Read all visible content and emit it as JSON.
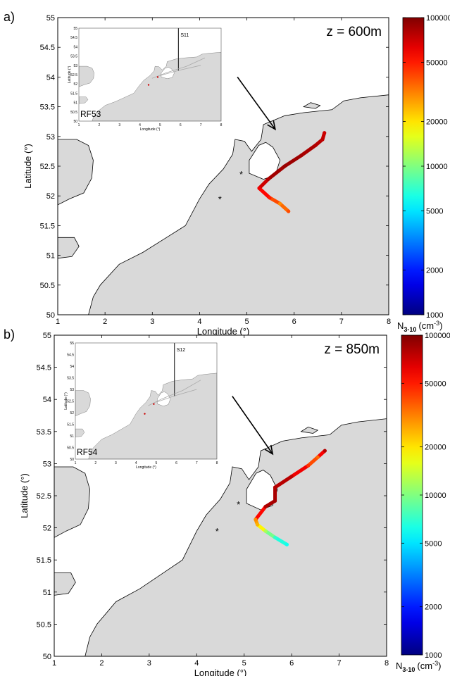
{
  "colors": {
    "land": "#d9d9d9",
    "sea": "#ffffff",
    "coast": "#000000",
    "marker": "#cc0000"
  },
  "colorbar": {
    "label": "N",
    "label_sub": "3-10",
    "label_unit": "(cm",
    "label_exp": "-3",
    "label_close": ")",
    "ticks": [
      "100000",
      "50000",
      "20000",
      "10000",
      "5000",
      "2000",
      "1000"
    ],
    "tick_values": [
      100000,
      50000,
      20000,
      10000,
      5000,
      2000,
      1000
    ],
    "min": 1000,
    "max": 100000,
    "scale": "log"
  },
  "chart_data": [
    {
      "type": "scatter",
      "panel_label": "a)",
      "annotation": "z = 600m",
      "xlabel": "Longitude (°)",
      "ylabel": "Latitude (°)",
      "xlim": [
        1,
        8
      ],
      "ylim": [
        50,
        55
      ],
      "xticks": [
        "1",
        "2",
        "3",
        "4",
        "5",
        "6",
        "7",
        "8"
      ],
      "yticks": [
        "50",
        "50.5",
        "51",
        "51.5",
        "52",
        "52.5",
        "53",
        "53.5",
        "54",
        "54.5",
        "55"
      ],
      "markers": [
        {
          "lon": 4.43,
          "lat": 51.95
        },
        {
          "lon": 4.88,
          "lat": 52.37
        }
      ],
      "arrow": {
        "from": [
          4.8,
          54.0
        ],
        "to": [
          5.6,
          53.12
        ]
      },
      "track": [
        {
          "lon": 5.88,
          "lat": 51.74,
          "n": 40000
        },
        {
          "lon": 5.7,
          "lat": 51.87,
          "n": 30000
        },
        {
          "lon": 5.48,
          "lat": 51.97,
          "n": 50000
        },
        {
          "lon": 5.26,
          "lat": 52.13,
          "n": 60000
        },
        {
          "lon": 5.45,
          "lat": 52.28,
          "n": 80000
        },
        {
          "lon": 5.8,
          "lat": 52.5,
          "n": 90000
        },
        {
          "lon": 6.15,
          "lat": 52.68,
          "n": 85000
        },
        {
          "lon": 6.45,
          "lat": 52.85,
          "n": 80000
        },
        {
          "lon": 6.6,
          "lat": 52.95,
          "n": 75000
        },
        {
          "lon": 6.64,
          "lat": 53.06,
          "n": 70000
        }
      ],
      "inset": {
        "label": "RF53",
        "section": "S11",
        "xlabel": "Longitude (°)",
        "ylabel": "Latitude (°)",
        "xticks": [
          "1",
          "2",
          "3",
          "4",
          "5",
          "6",
          "7",
          "8"
        ],
        "yticks": [
          "50",
          "50.5",
          "51",
          "51.5",
          "52",
          "52.5",
          "53",
          "53.5",
          "54",
          "54.5",
          "55"
        ],
        "section_lon": 5.9
      }
    },
    {
      "type": "scatter",
      "panel_label": "b)",
      "annotation": "z = 850m",
      "xlabel": "Longitude (°)",
      "ylabel": "Latitude (°)",
      "xlim": [
        1,
        8
      ],
      "ylim": [
        50,
        55
      ],
      "xticks": [
        "1",
        "2",
        "3",
        "4",
        "5",
        "6",
        "7",
        "8"
      ],
      "yticks": [
        "50",
        "50.5",
        "51",
        "51.5",
        "52",
        "52.5",
        "53",
        "53.5",
        "54",
        "54.5",
        "55"
      ],
      "markers": [
        {
          "lon": 4.43,
          "lat": 51.95
        },
        {
          "lon": 4.88,
          "lat": 52.37
        }
      ],
      "arrow": {
        "from": [
          4.75,
          54.05
        ],
        "to": [
          5.6,
          53.15
        ]
      },
      "track": [
        {
          "lon": 5.9,
          "lat": 51.74,
          "n": 6000
        },
        {
          "lon": 5.65,
          "lat": 51.85,
          "n": 7000
        },
        {
          "lon": 5.45,
          "lat": 51.95,
          "n": 12000
        },
        {
          "lon": 5.28,
          "lat": 52.05,
          "n": 25000
        },
        {
          "lon": 5.24,
          "lat": 52.13,
          "n": 30000
        },
        {
          "lon": 5.45,
          "lat": 52.33,
          "n": 80000
        },
        {
          "lon": 5.65,
          "lat": 52.42,
          "n": 85000
        },
        {
          "lon": 5.65,
          "lat": 52.63,
          "n": 80000
        },
        {
          "lon": 6.0,
          "lat": 52.8,
          "n": 75000
        },
        {
          "lon": 6.35,
          "lat": 52.97,
          "n": 45000
        },
        {
          "lon": 6.55,
          "lat": 53.1,
          "n": 35000
        },
        {
          "lon": 6.7,
          "lat": 53.2,
          "n": 80000
        }
      ],
      "inset": {
        "label": "RF54",
        "section": "S12",
        "xlabel": "Longitude (°)",
        "ylabel": "Latitude (°)",
        "xticks": [
          "1",
          "2",
          "3",
          "4",
          "5",
          "6",
          "7",
          "8"
        ],
        "yticks": [
          "50",
          "50.5",
          "51",
          "51.5",
          "52",
          "52.5",
          "53",
          "53.5",
          "54",
          "54.5",
          "55"
        ],
        "section_lon": 5.9
      }
    }
  ]
}
